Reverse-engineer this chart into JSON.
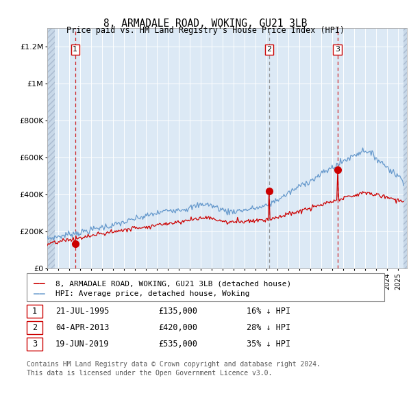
{
  "title": "8, ARMADALE ROAD, WOKING, GU21 3LB",
  "subtitle": "Price paid vs. HM Land Registry's House Price Index (HPI)",
  "legend_line1": "8, ARMADALE ROAD, WOKING, GU21 3LB (detached house)",
  "legend_line2": "HPI: Average price, detached house, Woking",
  "footer1": "Contains HM Land Registry data © Crown copyright and database right 2024.",
  "footer2": "This data is licensed under the Open Government Licence v3.0.",
  "sale_color": "#cc0000",
  "hpi_color": "#6699cc",
  "background_color": "#dce9f5",
  "ylim": [
    0,
    1300000
  ],
  "yticks": [
    0,
    200000,
    400000,
    600000,
    800000,
    1000000,
    1200000
  ],
  "ytick_labels": [
    "£0",
    "£200K",
    "£400K",
    "£600K",
    "£800K",
    "£1M",
    "£1.2M"
  ],
  "sale_years": [
    1995.55,
    2013.25,
    2019.46
  ],
  "sale_prices": [
    135000,
    420000,
    535000
  ],
  "sale_labels": [
    "1",
    "2",
    "3"
  ],
  "sale_vline_colors": [
    "#cc0000",
    "#888888",
    "#cc0000"
  ],
  "sale_dates_str": [
    "21-JUL-1995",
    "04-APR-2013",
    "19-JUN-2019"
  ],
  "sale_prices_str": [
    "£135,000",
    "£420,000",
    "£535,000"
  ],
  "sale_below_str": [
    "16% ↓ HPI",
    "28% ↓ HPI",
    "35% ↓ HPI"
  ],
  "xmin": 1993.0,
  "xmax": 2025.8,
  "hatch_xright": 2025.5
}
